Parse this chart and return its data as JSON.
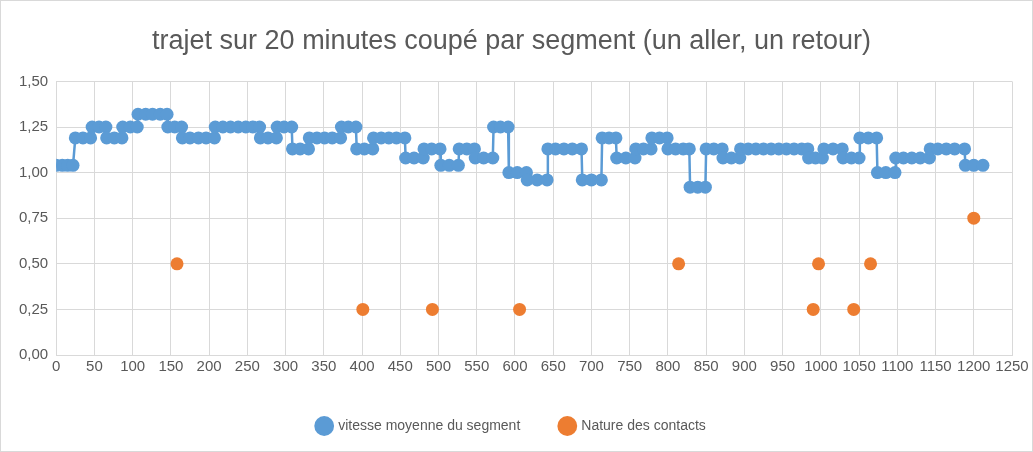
{
  "chart_data": {
    "type": "line",
    "title": "trajet sur 20 minutes coupé par segment (un aller, un retour)",
    "xlim": [
      0,
      1250
    ],
    "xticks": [
      0,
      50,
      100,
      150,
      200,
      250,
      300,
      350,
      400,
      450,
      500,
      550,
      600,
      650,
      700,
      750,
      800,
      850,
      900,
      950,
      1000,
      1050,
      1100,
      1150,
      1200,
      1250
    ],
    "ylim": [
      0,
      1.5
    ],
    "yticks": [
      {
        "value": 0,
        "label": "0,00"
      },
      {
        "value": 0.25,
        "label": "0,25"
      },
      {
        "value": 0.5,
        "label": "0,50"
      },
      {
        "value": 0.75,
        "label": "0,75"
      },
      {
        "value": 1,
        "label": "1,00"
      },
      {
        "value": 1.25,
        "label": "1,25"
      },
      {
        "value": 1.5,
        "label": "1,50"
      }
    ],
    "grid": true,
    "legend": "bottom",
    "marker": "circle",
    "line_style": "solid",
    "series": [
      {
        "name": "vitesse moyenne du segment",
        "color": "#5b9bd5",
        "x": [
          0,
          8,
          15,
          22,
          25,
          35,
          45,
          47,
          56,
          65,
          66,
          76,
          86,
          87,
          97,
          106,
          107,
          117,
          126,
          136,
          145,
          146,
          155,
          164,
          165,
          175,
          186,
          196,
          207,
          208,
          218,
          228,
          238,
          248,
          257,
          266,
          267,
          277,
          288,
          289,
          298,
          308,
          309,
          319,
          330,
          331,
          341,
          351,
          361,
          372,
          373,
          382,
          392,
          393,
          403,
          414,
          415,
          425,
          435,
          445,
          456,
          457,
          468,
          480,
          481,
          491,
          502,
          503,
          514,
          526,
          527,
          537,
          547,
          548,
          559,
          571,
          572,
          581,
          591,
          592,
          603,
          615,
          616,
          629,
          642,
          643,
          653,
          664,
          675,
          687,
          688,
          700,
          713,
          714,
          723,
          732,
          733,
          745,
          757,
          758,
          768,
          778,
          779,
          789,
          799,
          800,
          810,
          820,
          828,
          829,
          839,
          849,
          850,
          860,
          871,
          872,
          883,
          894,
          895,
          905,
          915,
          925,
          935,
          945,
          955,
          965,
          975,
          983,
          984,
          993,
          1002,
          1004,
          1016,
          1028,
          1029,
          1040,
          1050,
          1051,
          1062,
          1073,
          1074,
          1085,
          1097,
          1098,
          1108,
          1119,
          1130,
          1142,
          1143,
          1153,
          1164,
          1175,
          1188,
          1189,
          1200,
          1212
        ],
        "values": [
          1.04,
          1.04,
          1.04,
          1.04,
          1.19,
          1.19,
          1.19,
          1.25,
          1.25,
          1.25,
          1.19,
          1.19,
          1.19,
          1.25,
          1.25,
          1.25,
          1.32,
          1.32,
          1.32,
          1.32,
          1.32,
          1.25,
          1.25,
          1.25,
          1.19,
          1.19,
          1.19,
          1.19,
          1.19,
          1.25,
          1.25,
          1.25,
          1.25,
          1.25,
          1.25,
          1.25,
          1.19,
          1.19,
          1.19,
          1.25,
          1.25,
          1.25,
          1.13,
          1.13,
          1.13,
          1.19,
          1.19,
          1.19,
          1.19,
          1.19,
          1.25,
          1.25,
          1.25,
          1.13,
          1.13,
          1.13,
          1.19,
          1.19,
          1.19,
          1.19,
          1.19,
          1.08,
          1.08,
          1.08,
          1.13,
          1.13,
          1.13,
          1.04,
          1.04,
          1.04,
          1.13,
          1.13,
          1.13,
          1.08,
          1.08,
          1.08,
          1.25,
          1.25,
          1.25,
          1.0,
          1.0,
          1.0,
          0.96,
          0.96,
          0.96,
          1.13,
          1.13,
          1.13,
          1.13,
          1.13,
          0.96,
          0.96,
          0.96,
          1.19,
          1.19,
          1.19,
          1.08,
          1.08,
          1.08,
          1.13,
          1.13,
          1.13,
          1.19,
          1.19,
          1.19,
          1.13,
          1.13,
          1.13,
          1.13,
          0.92,
          0.92,
          0.92,
          1.13,
          1.13,
          1.13,
          1.08,
          1.08,
          1.08,
          1.13,
          1.13,
          1.13,
          1.13,
          1.13,
          1.13,
          1.13,
          1.13,
          1.13,
          1.13,
          1.08,
          1.08,
          1.08,
          1.13,
          1.13,
          1.13,
          1.08,
          1.08,
          1.08,
          1.19,
          1.19,
          1.19,
          1.0,
          1.0,
          1.0,
          1.08,
          1.08,
          1.08,
          1.08,
          1.08,
          1.13,
          1.13,
          1.13,
          1.13,
          1.13,
          1.04,
          1.04,
          1.04
        ]
      },
      {
        "name": "Nature des contacts",
        "type": "scatter",
        "color": "#ed7d31",
        "x": [
          158,
          401,
          492,
          606,
          814,
          990,
          997,
          1043,
          1065,
          1200
        ],
        "values": [
          0.5,
          0.25,
          0.25,
          0.25,
          0.5,
          0.25,
          0.5,
          0.25,
          0.5,
          0.75
        ]
      }
    ]
  }
}
